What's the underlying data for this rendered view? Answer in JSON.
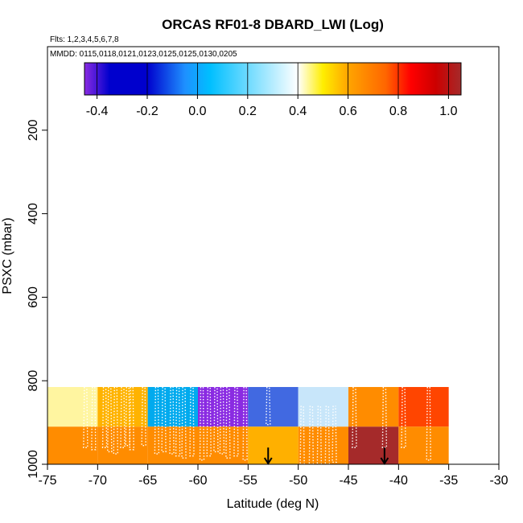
{
  "chart_data": {
    "type": "heatmap",
    "title": "ORCAS RF01-8 DBARD_LWI (Log)",
    "flights_label": "Flts: 1,2,3,4,5,6,7,8",
    "dates_label": "MMDD: 0115,0118,0121,0123,0125,0125,0130,0205",
    "xlabel": "Latitude (deg N)",
    "ylabel": "PSXC (mbar)",
    "xlim": [
      -75,
      -30
    ],
    "ylim": [
      1000,
      0
    ],
    "x_ticks": [
      -75,
      -70,
      -65,
      -60,
      -55,
      -50,
      -45,
      -40,
      -35,
      -30
    ],
    "x_tick_labels": [
      "-75",
      "-70",
      "-65",
      "-60",
      "-55",
      "-50",
      "-45",
      "-40",
      "-35",
      "-30"
    ],
    "y_ticks": [
      200,
      400,
      600,
      800,
      1000
    ],
    "y_tick_labels": [
      "200",
      "400",
      "600",
      "800",
      "1000"
    ],
    "colorbar": {
      "range": [
        -0.45,
        1.05
      ],
      "ticks": [
        -0.4,
        -0.2,
        0.0,
        0.2,
        0.4,
        0.6,
        0.8,
        1.0
      ],
      "tick_labels": [
        "-0.4",
        "-0.2",
        "0.0",
        "0.2",
        "0.4",
        "0.6",
        "0.8",
        "1.0"
      ],
      "stops": [
        {
          "v": -0.45,
          "color": "#8A2BE2"
        },
        {
          "v": -0.35,
          "color": "#0000CD"
        },
        {
          "v": -0.2,
          "color": "#0000CD"
        },
        {
          "v": -0.05,
          "color": "#1E90FF"
        },
        {
          "v": 0.05,
          "color": "#00BFFF"
        },
        {
          "v": 0.4,
          "color": "#FFFFFF"
        },
        {
          "v": 0.5,
          "color": "#FFEE00"
        },
        {
          "v": 0.6,
          "color": "#FFA500"
        },
        {
          "v": 0.75,
          "color": "#FF6600"
        },
        {
          "v": 0.85,
          "color": "#FF0000"
        },
        {
          "v": 0.95,
          "color": "#CC0000"
        },
        {
          "v": 1.05,
          "color": "#A52A2A"
        }
      ]
    },
    "cells": [
      {
        "lat_min": -75,
        "lat_max": -70,
        "p_min": 815,
        "p_max": 910,
        "value": 0.45,
        "color": "#FFF5A0"
      },
      {
        "lat_min": -70,
        "lat_max": -65,
        "p_min": 815,
        "p_max": 910,
        "value": 0.58,
        "color": "#FFB300"
      },
      {
        "lat_min": -65,
        "lat_max": -60,
        "p_min": 815,
        "p_max": 910,
        "value": 0.08,
        "color": "#00AAEE"
      },
      {
        "lat_min": -60,
        "lat_max": -55,
        "p_min": 815,
        "p_max": 910,
        "value": -0.42,
        "color": "#8A2BE2"
      },
      {
        "lat_min": -55,
        "lat_max": -50,
        "p_min": 815,
        "p_max": 910,
        "value": -0.1,
        "color": "#4169E1"
      },
      {
        "lat_min": -50,
        "lat_max": -45,
        "p_min": 815,
        "p_max": 910,
        "value": 0.3,
        "color": "#C8E6FA"
      },
      {
        "lat_min": -45,
        "lat_max": -40,
        "p_min": 815,
        "p_max": 910,
        "value": 0.65,
        "color": "#FF8C00"
      },
      {
        "lat_min": -40,
        "lat_max": -35,
        "p_min": 815,
        "p_max": 910,
        "value": 0.75,
        "color": "#FF4500"
      },
      {
        "lat_min": -75,
        "lat_max": -70,
        "p_min": 910,
        "p_max": 1000,
        "value": 0.62,
        "color": "#FF8C00"
      },
      {
        "lat_min": -70,
        "lat_max": -65,
        "p_min": 910,
        "p_max": 1000,
        "value": 0.62,
        "color": "#FF8C00"
      },
      {
        "lat_min": -65,
        "lat_max": -60,
        "p_min": 910,
        "p_max": 1000,
        "value": 0.62,
        "color": "#FF8C00"
      },
      {
        "lat_min": -60,
        "lat_max": -55,
        "p_min": 910,
        "p_max": 1000,
        "value": 0.62,
        "color": "#FF8C00"
      },
      {
        "lat_min": -55,
        "lat_max": -50,
        "p_min": 910,
        "p_max": 1000,
        "value": 0.58,
        "color": "#FFB000"
      },
      {
        "lat_min": -50,
        "lat_max": -45,
        "p_min": 910,
        "p_max": 1000,
        "value": 0.62,
        "color": "#FF8C00"
      },
      {
        "lat_min": -45,
        "lat_max": -40,
        "p_min": 910,
        "p_max": 1000,
        "value": 1.02,
        "color": "#A52A2A"
      },
      {
        "lat_min": -40,
        "lat_max": -35,
        "p_min": 910,
        "p_max": 1000,
        "value": 0.62,
        "color": "#FF8C00"
      }
    ],
    "profiles": [
      {
        "lat": -71.2,
        "p_top": 815,
        "p_bottom": 960
      },
      {
        "lat": -70.4,
        "p_top": 815,
        "p_bottom": 965
      },
      {
        "lat": -69.3,
        "p_top": 815,
        "p_bottom": 960
      },
      {
        "lat": -68.8,
        "p_top": 815,
        "p_bottom": 970
      },
      {
        "lat": -68.2,
        "p_top": 815,
        "p_bottom": 975
      },
      {
        "lat": -67.5,
        "p_top": 815,
        "p_bottom": 960
      },
      {
        "lat": -67.0,
        "p_top": 815,
        "p_bottom": 955
      },
      {
        "lat": -66.6,
        "p_top": 815,
        "p_bottom": 965
      },
      {
        "lat": -65.4,
        "p_top": 815,
        "p_bottom": 955
      },
      {
        "lat": -64.1,
        "p_top": 815,
        "p_bottom": 975
      },
      {
        "lat": -63.4,
        "p_top": 815,
        "p_bottom": 970
      },
      {
        "lat": -62.6,
        "p_top": 815,
        "p_bottom": 975
      },
      {
        "lat": -62.0,
        "p_top": 815,
        "p_bottom": 980
      },
      {
        "lat": -61.4,
        "p_top": 815,
        "p_bottom": 985
      },
      {
        "lat": -60.6,
        "p_top": 815,
        "p_bottom": 980
      },
      {
        "lat": -59.6,
        "p_top": 815,
        "p_bottom": 990
      },
      {
        "lat": -58.9,
        "p_top": 815,
        "p_bottom": 980
      },
      {
        "lat": -58.2,
        "p_top": 815,
        "p_bottom": 970
      },
      {
        "lat": -57.6,
        "p_top": 815,
        "p_bottom": 975
      },
      {
        "lat": -57.0,
        "p_top": 815,
        "p_bottom": 985
      },
      {
        "lat": -56.2,
        "p_top": 815,
        "p_bottom": 980
      },
      {
        "lat": -55.3,
        "p_top": 815,
        "p_bottom": 990
      },
      {
        "lat": -53.0,
        "p_top": 815,
        "p_bottom": 905
      },
      {
        "lat": -49.6,
        "p_top": 860,
        "p_bottom": 1000
      },
      {
        "lat": -48.7,
        "p_top": 860,
        "p_bottom": 1000
      },
      {
        "lat": -47.9,
        "p_top": 860,
        "p_bottom": 1000
      },
      {
        "lat": -47.1,
        "p_top": 860,
        "p_bottom": 1000
      },
      {
        "lat": -46.4,
        "p_top": 860,
        "p_bottom": 995
      },
      {
        "lat": -44.4,
        "p_top": 815,
        "p_bottom": 960
      },
      {
        "lat": -41.4,
        "p_top": 815,
        "p_bottom": 960
      },
      {
        "lat": -39.5,
        "p_top": 815,
        "p_bottom": 960
      },
      {
        "lat": -37.0,
        "p_top": 815,
        "p_bottom": 990
      }
    ],
    "arrows": [
      {
        "lat": -53.0,
        "p_top": 960,
        "p_bottom": 1000
      },
      {
        "lat": -41.4,
        "p_top": 960,
        "p_bottom": 1000
      }
    ]
  }
}
